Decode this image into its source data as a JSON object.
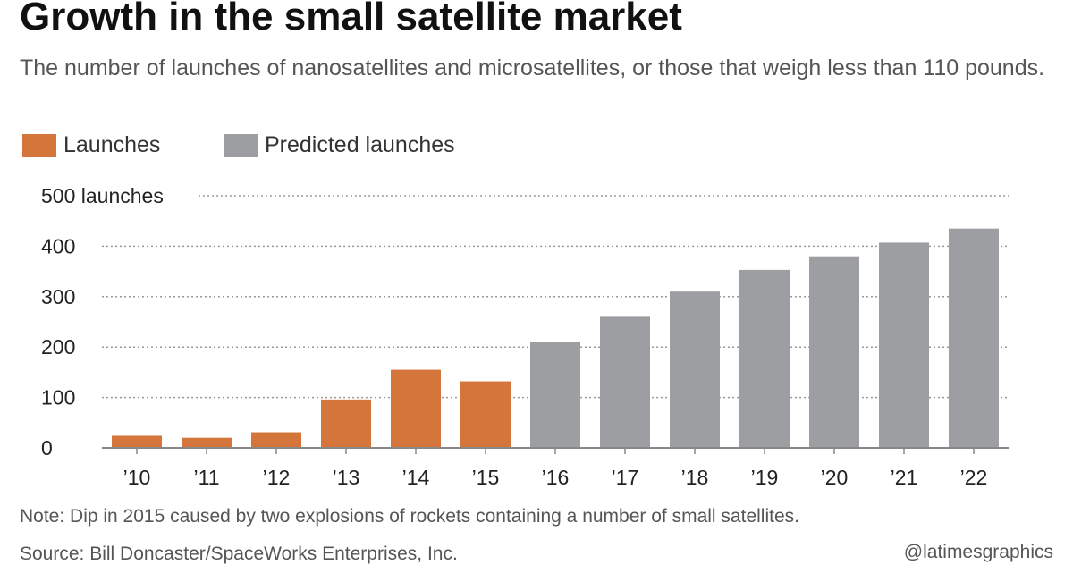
{
  "title": "Growth in the small satellite market",
  "subtitle": "The number of launches of nanosatellites and microsatellites, or those that weigh less than 110 pounds.",
  "legend": [
    {
      "label": "Launches",
      "color": "#d4763b"
    },
    {
      "label": "Predicted launches",
      "color": "#9d9ea1"
    }
  ],
  "note": "Note: Dip in 2015 caused by two explosions of rockets containing a number of small satellites.",
  "source": "Source: Bill Doncaster/SpaceWorks Enterprises, Inc.",
  "credit": "@latimesgraphics",
  "chart_data": {
    "type": "bar",
    "title": "Growth in the small satellite market",
    "xlabel": "",
    "ylabel": "",
    "ylim": [
      0,
      500
    ],
    "yticks": [
      0,
      100,
      200,
      300,
      400,
      500
    ],
    "ytick_labels": [
      "0",
      "100",
      "200",
      "300",
      "400",
      "500 launches"
    ],
    "grid": true,
    "legend_position": "top-left",
    "categories": [
      "’10",
      "’11",
      "’12",
      "’13",
      "’14",
      "’15",
      "’16",
      "’17",
      "’18",
      "’19",
      "’20",
      "’21",
      "’22"
    ],
    "series": [
      {
        "name": "Launches",
        "color": "#d4763b",
        "values": [
          24,
          20,
          31,
          96,
          155,
          132,
          null,
          null,
          null,
          null,
          null,
          null,
          null
        ]
      },
      {
        "name": "Predicted launches",
        "color": "#9d9ea1",
        "values": [
          null,
          null,
          null,
          null,
          null,
          null,
          210,
          260,
          310,
          353,
          380,
          407,
          435
        ]
      }
    ]
  }
}
